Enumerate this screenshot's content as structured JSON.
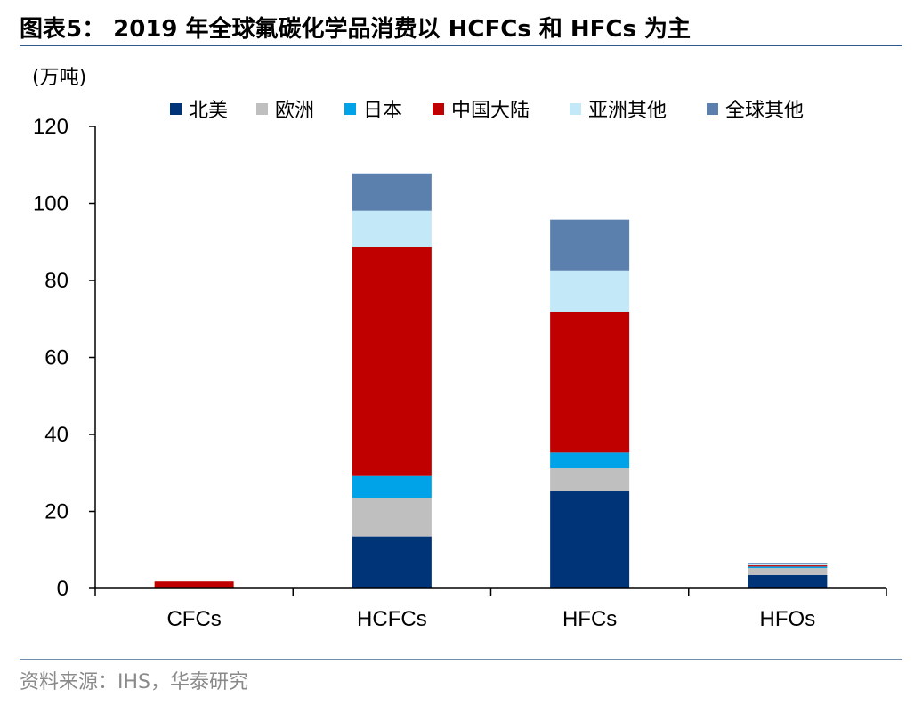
{
  "header": {
    "title": "图表5： 2019 年全球氟碳化学品消费以 HCFCs 和 HFCs 为主"
  },
  "footer": {
    "source": "资料来源：IHS，华泰研究"
  },
  "chart_data": {
    "type": "bar",
    "stacked": true,
    "unit_label": "(万吨)",
    "categories": [
      "CFCs",
      "HCFCs",
      "HFCs",
      "HFOs"
    ],
    "ylim": [
      0,
      120
    ],
    "yticks": [
      0,
      20,
      40,
      60,
      80,
      100,
      120
    ],
    "grid": false,
    "legend_position": "top",
    "series": [
      {
        "name": "北美",
        "color": "#003478",
        "values": [
          0,
          13.5,
          25.2,
          3.5
        ]
      },
      {
        "name": "欧洲",
        "color": "#bfbfbf",
        "values": [
          0,
          9.9,
          6.0,
          1.8
        ]
      },
      {
        "name": "日本",
        "color": "#00a2e8",
        "values": [
          0,
          5.8,
          4.1,
          0.4
        ]
      },
      {
        "name": "中国大陆",
        "color": "#c00000",
        "values": [
          1.8,
          59.5,
          36.5,
          0.3
        ]
      },
      {
        "name": "亚洲其他",
        "color": "#c3e9f8",
        "values": [
          0,
          9.4,
          10.8,
          0.3
        ]
      },
      {
        "name": "全球其他",
        "color": "#5b80ad",
        "values": [
          0,
          9.7,
          13.2,
          0.3
        ]
      }
    ]
  }
}
